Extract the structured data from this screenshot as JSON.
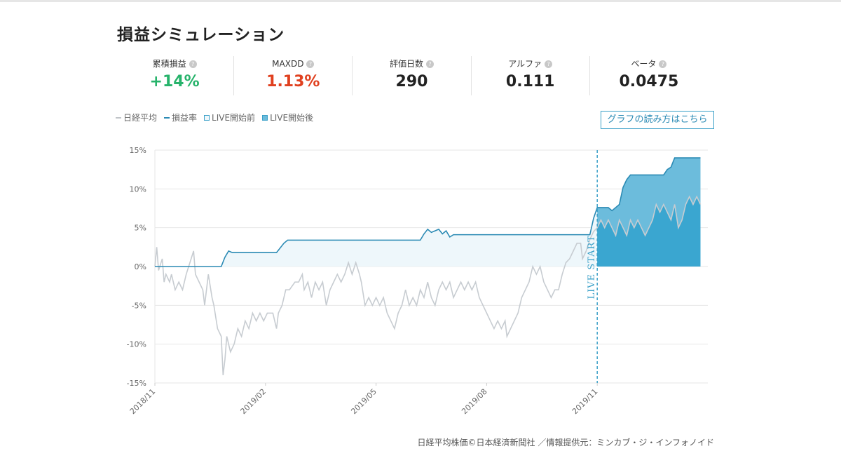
{
  "page": {
    "title": "損益シミュレーション"
  },
  "stats": [
    {
      "label": "累積損益",
      "value": "+14%",
      "color": "#27b36b"
    },
    {
      "label": "MAXDD",
      "value": "1.13%",
      "color": "#e0401f"
    },
    {
      "label": "評価日数",
      "value": "290",
      "color": "#222222"
    },
    {
      "label": "アルファ",
      "value": "0.111",
      "color": "#222222"
    },
    {
      "label": "ベータ",
      "value": "0.0475",
      "color": "#222222"
    }
  ],
  "legend": [
    {
      "label": "日経平均",
      "swatch": "line",
      "color": "#c0c4c8"
    },
    {
      "label": "損益率",
      "swatch": "line",
      "color": "#2a8ab4"
    },
    {
      "label": "LIVE開始前",
      "swatch": "box",
      "color": "#eef7fb",
      "border": "#3aa0c8"
    },
    {
      "label": "LIVE開始後",
      "swatch": "box",
      "color": "#6cbcdc",
      "border": "#3aa0c8"
    }
  ],
  "guide_button": "グラフの読み方はこちら",
  "footer": "日経平均株価©日本経済新聞社 ／情報提供元：ミンカブ・ジ・インフォノイド",
  "chart_data": {
    "type": "area",
    "y_ticks": [
      "15%",
      "10%",
      "5%",
      "0%",
      "-5%",
      "-10%",
      "-15%"
    ],
    "ylim": [
      -15,
      15
    ],
    "x_ticks": [
      {
        "label": "2018/11",
        "t": 0
      },
      {
        "label": "2019/02",
        "t": 3
      },
      {
        "label": "2019/05",
        "t": 6
      },
      {
        "label": "2019/08",
        "t": 9
      },
      {
        "label": "2019/11",
        "t": 12
      }
    ],
    "x_range": [
      0,
      15
    ],
    "live_start_t": 12,
    "live_start_label": "LIVE START",
    "colors": {
      "profit_line": "#2a8ab4",
      "pre_fill": "#eef7fb",
      "post_fill": "#6cbcdc",
      "post_fill_dark": "#3aa6d0",
      "nikkei": "#c7ccd1",
      "grid": "#e6e6e6",
      "live_line": "#3aa0c8"
    },
    "series": [
      {
        "name": "損益率",
        "points": [
          [
            0,
            0
          ],
          [
            1.8,
            0
          ],
          [
            1.9,
            1.2
          ],
          [
            2.0,
            2.0
          ],
          [
            2.1,
            1.8
          ],
          [
            3.3,
            1.8
          ],
          [
            3.5,
            3.0
          ],
          [
            3.6,
            3.4
          ],
          [
            7.2,
            3.4
          ],
          [
            7.3,
            4.2
          ],
          [
            7.4,
            4.8
          ],
          [
            7.5,
            4.4
          ],
          [
            7.6,
            4.6
          ],
          [
            7.7,
            4.8
          ],
          [
            7.8,
            4.2
          ],
          [
            7.9,
            4.6
          ],
          [
            8.0,
            3.8
          ],
          [
            8.1,
            4.1
          ],
          [
            11.8,
            4.1
          ],
          [
            11.9,
            6.2
          ],
          [
            12.0,
            7.6
          ],
          [
            12.3,
            7.6
          ],
          [
            12.4,
            7.2
          ],
          [
            12.6,
            8.0
          ],
          [
            12.7,
            10.2
          ],
          [
            12.8,
            11.2
          ],
          [
            12.9,
            11.8
          ],
          [
            13.8,
            11.8
          ],
          [
            13.9,
            12.5
          ],
          [
            14.0,
            12.8
          ],
          [
            14.1,
            14.0
          ],
          [
            14.8,
            14.0
          ]
        ]
      },
      {
        "name": "日経平均",
        "points": [
          [
            0,
            0
          ],
          [
            0.05,
            2.5
          ],
          [
            0.1,
            -0.5
          ],
          [
            0.2,
            1.0
          ],
          [
            0.25,
            -2.0
          ],
          [
            0.3,
            -1.0
          ],
          [
            0.4,
            -2.0
          ],
          [
            0.45,
            -1.0
          ],
          [
            0.55,
            -3.0
          ],
          [
            0.65,
            -2.0
          ],
          [
            0.75,
            -3.0
          ],
          [
            0.85,
            -1.0
          ],
          [
            0.95,
            0.5
          ],
          [
            1.05,
            2.0
          ],
          [
            1.1,
            -1.0
          ],
          [
            1.2,
            -2.0
          ],
          [
            1.3,
            -3.0
          ],
          [
            1.35,
            -5.0
          ],
          [
            1.45,
            -1.0
          ],
          [
            1.55,
            -4.0
          ],
          [
            1.6,
            -5.0
          ],
          [
            1.7,
            -8.0
          ],
          [
            1.8,
            -9.0
          ],
          [
            1.85,
            -14.0
          ],
          [
            1.9,
            -12.0
          ],
          [
            1.95,
            -9.0
          ],
          [
            2.05,
            -11.0
          ],
          [
            2.15,
            -10.0
          ],
          [
            2.25,
            -8.0
          ],
          [
            2.35,
            -9.0
          ],
          [
            2.45,
            -7.0
          ],
          [
            2.55,
            -8.0
          ],
          [
            2.65,
            -6.0
          ],
          [
            2.75,
            -7.0
          ],
          [
            2.85,
            -6.0
          ],
          [
            2.95,
            -7.0
          ],
          [
            3.05,
            -6.0
          ],
          [
            3.2,
            -6.0
          ],
          [
            3.3,
            -8.0
          ],
          [
            3.35,
            -6.0
          ],
          [
            3.45,
            -5.0
          ],
          [
            3.55,
            -3.0
          ],
          [
            3.65,
            -3.0
          ],
          [
            3.8,
            -2.0
          ],
          [
            3.9,
            -2.0
          ],
          [
            4.0,
            -1.0
          ],
          [
            4.05,
            -3.0
          ],
          [
            4.15,
            -2.0
          ],
          [
            4.25,
            -4.0
          ],
          [
            4.35,
            -2.0
          ],
          [
            4.45,
            -3.0
          ],
          [
            4.55,
            -2.0
          ],
          [
            4.65,
            -5.0
          ],
          [
            4.75,
            -3.0
          ],
          [
            4.85,
            -2.0
          ],
          [
            4.95,
            -1.0
          ],
          [
            5.05,
            -2.0
          ],
          [
            5.15,
            -1.0
          ],
          [
            5.25,
            0.5
          ],
          [
            5.35,
            -1.0
          ],
          [
            5.45,
            0.5
          ],
          [
            5.55,
            -1.0
          ],
          [
            5.6,
            -2.0
          ],
          [
            5.7,
            -5.0
          ],
          [
            5.8,
            -4.0
          ],
          [
            5.9,
            -5.0
          ],
          [
            6.0,
            -4.0
          ],
          [
            6.1,
            -5.0
          ],
          [
            6.2,
            -4.0
          ],
          [
            6.3,
            -6.0
          ],
          [
            6.4,
            -7.0
          ],
          [
            6.5,
            -8.0
          ],
          [
            6.6,
            -6.0
          ],
          [
            6.7,
            -5.0
          ],
          [
            6.8,
            -3.0
          ],
          [
            6.9,
            -5.0
          ],
          [
            7.0,
            -4.0
          ],
          [
            7.1,
            -5.0
          ],
          [
            7.2,
            -3.0
          ],
          [
            7.3,
            -4.0
          ],
          [
            7.4,
            -2.0
          ],
          [
            7.5,
            -4.0
          ],
          [
            7.6,
            -5.0
          ],
          [
            7.7,
            -3.0
          ],
          [
            7.8,
            -2.0
          ],
          [
            7.9,
            -3.0
          ],
          [
            8.0,
            -2.0
          ],
          [
            8.1,
            -4.0
          ],
          [
            8.2,
            -3.0
          ],
          [
            8.3,
            -2.0
          ],
          [
            8.4,
            -3.0
          ],
          [
            8.5,
            -2.0
          ],
          [
            8.6,
            -3.0
          ],
          [
            8.7,
            -2.0
          ],
          [
            8.8,
            -4.0
          ],
          [
            8.9,
            -5.0
          ],
          [
            9.0,
            -6.0
          ],
          [
            9.1,
            -7.0
          ],
          [
            9.2,
            -8.0
          ],
          [
            9.3,
            -7.0
          ],
          [
            9.4,
            -8.0
          ],
          [
            9.5,
            -7.0
          ],
          [
            9.55,
            -9.0
          ],
          [
            9.65,
            -8.0
          ],
          [
            9.75,
            -7.0
          ],
          [
            9.85,
            -6.0
          ],
          [
            9.95,
            -4.0
          ],
          [
            10.05,
            -3.0
          ],
          [
            10.15,
            -2.0
          ],
          [
            10.25,
            0.0
          ],
          [
            10.35,
            -1.0
          ],
          [
            10.45,
            0.0
          ],
          [
            10.55,
            -2.0
          ],
          [
            10.65,
            -3.0
          ],
          [
            10.75,
            -4.0
          ],
          [
            10.85,
            -3.0
          ],
          [
            10.95,
            -3.0
          ],
          [
            11.05,
            -1.0
          ],
          [
            11.15,
            0.5
          ],
          [
            11.25,
            1.0
          ],
          [
            11.35,
            2.0
          ],
          [
            11.45,
            3.0
          ],
          [
            11.55,
            3.0
          ],
          [
            11.6,
            1.0
          ],
          [
            11.7,
            2.0
          ],
          [
            11.8,
            3.5
          ],
          [
            11.9,
            4.5
          ],
          [
            12.0,
            5.0
          ],
          [
            12.1,
            6.0
          ],
          [
            12.2,
            5.0
          ],
          [
            12.3,
            6.0
          ],
          [
            12.4,
            5.0
          ],
          [
            12.5,
            4.0
          ],
          [
            12.6,
            6.0
          ],
          [
            12.7,
            5.0
          ],
          [
            12.8,
            4.0
          ],
          [
            12.9,
            6.0
          ],
          [
            13.0,
            5.0
          ],
          [
            13.1,
            6.0
          ],
          [
            13.2,
            5.0
          ],
          [
            13.3,
            4.0
          ],
          [
            13.4,
            5.0
          ],
          [
            13.5,
            6.0
          ],
          [
            13.6,
            8.0
          ],
          [
            13.7,
            7.0
          ],
          [
            13.8,
            8.0
          ],
          [
            13.9,
            7.0
          ],
          [
            14.0,
            6.0
          ],
          [
            14.1,
            8.0
          ],
          [
            14.2,
            5.0
          ],
          [
            14.3,
            6.0
          ],
          [
            14.4,
            8.0
          ],
          [
            14.5,
            9.0
          ],
          [
            14.6,
            8.0
          ],
          [
            14.7,
            9.0
          ],
          [
            14.8,
            8.0
          ]
        ]
      }
    ]
  }
}
